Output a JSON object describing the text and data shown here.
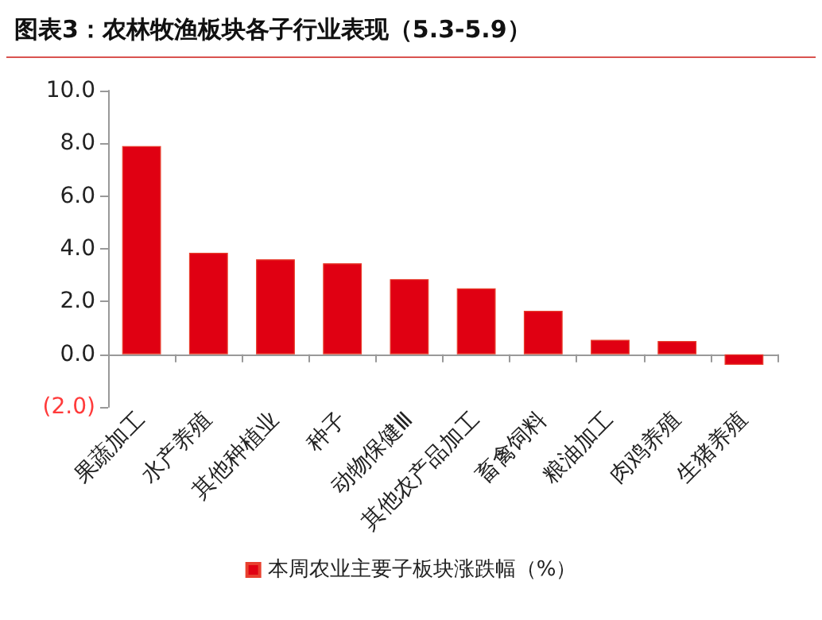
{
  "chart_data": {
    "type": "bar",
    "title": "图表3：农林牧渔板块各子行业表现（5.3-5.9）",
    "categories": [
      "果蔬加工",
      "水产养殖",
      "其他种植业",
      "种子",
      "动物保健Ⅲ",
      "其他农产品加工",
      "畜禽饲料",
      "粮油加工",
      "肉鸡养殖",
      "生猪养殖"
    ],
    "series": [
      {
        "name": "本周农业主要子板块涨跌幅（%）",
        "color": "#e00012",
        "values": [
          7.9,
          3.85,
          3.6,
          3.45,
          2.85,
          2.5,
          1.65,
          0.55,
          0.5,
          -0.4
        ]
      }
    ],
    "ylim": [
      -2,
      10
    ],
    "yticks": [
      {
        "value": -2,
        "label": "(2.0)"
      },
      {
        "value": 0,
        "label": "0.0"
      },
      {
        "value": 2,
        "label": "2.0"
      },
      {
        "value": 4,
        "label": "4.0"
      },
      {
        "value": 6,
        "label": "6.0"
      },
      {
        "value": 8,
        "label": "8.0"
      },
      {
        "value": 10,
        "label": "10.0"
      }
    ],
    "grid": false,
    "legend": "bottom"
  }
}
